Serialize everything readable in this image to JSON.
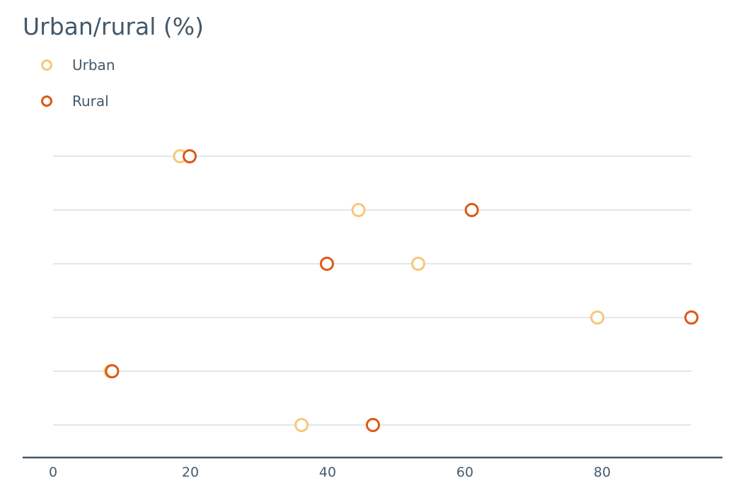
{
  "chart_data": {
    "type": "scatter",
    "title": "Urban/rural (%)",
    "xlabel": "",
    "ylabel": "",
    "xlim": [
      0,
      93
    ],
    "xticks": [
      0,
      20,
      40,
      60,
      80
    ],
    "grid": true,
    "legend_placement": "top-left",
    "colors": {
      "urban": "#f7c77a",
      "rural": "#db5a14",
      "grid": "#d7dfe7",
      "axis": "#42586a",
      "text": "#475c6e"
    },
    "series": [
      {
        "name": "Urban",
        "values": [
          18.5,
          44.5,
          53.2,
          79.3,
          8.4,
          36.2
        ]
      },
      {
        "name": "Rural",
        "values": [
          19.9,
          61.0,
          39.9,
          93.0,
          8.6,
          46.6
        ]
      }
    ]
  }
}
